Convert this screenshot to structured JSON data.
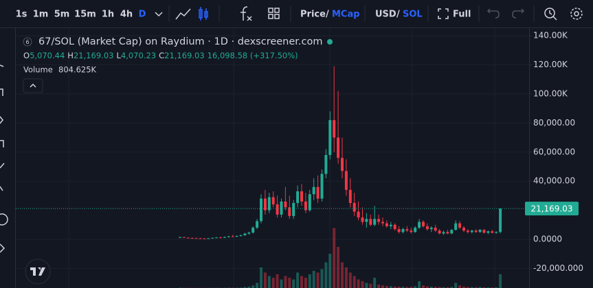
{
  "toolbar": {
    "intervals": [
      "1s",
      "1m",
      "5m",
      "15m",
      "1h",
      "4h",
      "D"
    ],
    "price": "Price",
    "slash": "/",
    "mcap": "MCap",
    "usd": "USD",
    "sol": "SOL",
    "full": "Full"
  },
  "legend": {
    "badge": "6",
    "title": "67/SOL (Market Cap) on Raydium · 1D · dexscreener.com",
    "labels": [
      "O",
      "H",
      "L",
      "C"
    ],
    "ohlc": [
      "5,070.44",
      "21,169.03",
      "4,070.23",
      "21,169.03"
    ],
    "change": "16,098.58 (+317.50%)",
    "volume_label": "Volume",
    "volume_value": "804.625K"
  },
  "chart_data": {
    "type": "candlestick",
    "up_color": "#22ab94",
    "down_color": "#f23645",
    "open": [
      1200,
      1500,
      1100,
      900,
      800,
      700,
      600,
      500,
      700,
      1000,
      1300,
      1100,
      1600,
      2000,
      1800,
      2300,
      2800,
      3900,
      4600,
      8000,
      12500,
      28000,
      20000,
      29000,
      24000,
      17000,
      26000,
      22000,
      16000,
      25000,
      33000,
      26000,
      20000,
      31000,
      36000,
      28000,
      45000,
      58000,
      82000,
      70000,
      56000,
      47000,
      34000,
      25000,
      19000,
      15000,
      12000,
      14000,
      10000,
      14000,
      12000,
      11000,
      9000,
      10000,
      7000,
      5000,
      7000,
      6000,
      5000,
      8000,
      12000,
      9000,
      7000,
      8000,
      6000,
      4000,
      5000,
      4000,
      6500,
      11000,
      8000,
      6000,
      5000,
      6000,
      5000,
      6500,
      4500,
      5500,
      4500,
      5070.44
    ],
    "high": [
      1800,
      1700,
      1400,
      1200,
      1100,
      1000,
      900,
      800,
      1200,
      1500,
      1700,
      1900,
      2400,
      3000,
      2600,
      3200,
      4500,
      5200,
      9000,
      14000,
      31000,
      34000,
      32000,
      33000,
      30000,
      28000,
      36000,
      30000,
      27000,
      37000,
      38000,
      32000,
      34000,
      42000,
      44000,
      48000,
      62000,
      88000,
      119000,
      102000,
      70000,
      55000,
      42000,
      32000,
      26000,
      22000,
      18000,
      17000,
      23000,
      17000,
      15000,
      13000,
      12000,
      11000,
      9000,
      8000,
      9000,
      8000,
      9000,
      14000,
      13000,
      11000,
      9000,
      10000,
      7000,
      6000,
      6500,
      7000,
      13000,
      12500,
      9000,
      7000,
      6500,
      7000,
      7000,
      7000,
      6000,
      6500,
      5500,
      21169.03
    ],
    "low": [
      900,
      1000,
      800,
      600,
      500,
      400,
      300,
      300,
      500,
      800,
      900,
      900,
      1200,
      1600,
      1500,
      1900,
      2300,
      3200,
      4000,
      7000,
      11000,
      17000,
      18000,
      22000,
      15000,
      15000,
      20000,
      14000,
      14000,
      22000,
      23000,
      18000,
      19000,
      27000,
      25000,
      26000,
      42000,
      55000,
      60000,
      52000,
      42000,
      30000,
      22000,
      16000,
      13000,
      10000,
      8000,
      9000,
      9000,
      10000,
      9000,
      8000,
      7000,
      6000,
      4000,
      4000,
      5000,
      4000,
      4500,
      7000,
      8000,
      6000,
      5000,
      5000,
      3500,
      3000,
      3500,
      3500,
      6000,
      7000,
      5000,
      4000,
      4000,
      4500,
      4500,
      4000,
      3500,
      4000,
      3800,
      4070.23
    ],
    "close": [
      1500,
      1100,
      900,
      800,
      700,
      600,
      500,
      700,
      1000,
      1300,
      1100,
      1600,
      2000,
      1800,
      2300,
      2800,
      3900,
      4600,
      8000,
      12500,
      28000,
      20000,
      29000,
      24000,
      17000,
      26000,
      22000,
      16000,
      25000,
      33000,
      26000,
      20000,
      31000,
      36000,
      28000,
      45000,
      58000,
      82000,
      70000,
      56000,
      47000,
      34000,
      25000,
      19000,
      15000,
      12000,
      14000,
      10000,
      14000,
      12000,
      11000,
      9000,
      10000,
      7000,
      5000,
      7000,
      6000,
      5000,
      8000,
      12000,
      9000,
      7000,
      8000,
      6000,
      4000,
      5000,
      4000,
      6500,
      11000,
      8000,
      6000,
      5000,
      6000,
      5000,
      6500,
      4500,
      5500,
      4500,
      5070.44,
      21169.03
    ],
    "volume": [
      20000,
      15000,
      10000,
      8000,
      8000,
      6000,
      5000,
      9000,
      12000,
      15000,
      10000,
      14000,
      20000,
      18000,
      22000,
      25000,
      60000,
      80000,
      150000,
      300000,
      1200000,
      900000,
      700000,
      600000,
      800000,
      500000,
      700000,
      600000,
      500000,
      900000,
      700000,
      600000,
      800000,
      1000000,
      900000,
      1100000,
      1500000,
      2000000,
      3500000,
      2400000,
      1500000,
      1200000,
      900000,
      700000,
      500000,
      400000,
      300000,
      250000,
      600000,
      200000,
      150000,
      120000,
      100000,
      90000,
      80000,
      70000,
      60000,
      70000,
      100000,
      400000,
      150000,
      90000,
      80000,
      70000,
      60000,
      50000,
      50000,
      60000,
      300000,
      150000,
      80000,
      60000,
      50000,
      50000,
      60000,
      40000,
      40000,
      35000,
      40000,
      804625
    ],
    "volume_lim": [
      0,
      4000000
    ],
    "ylim": [
      -33500,
      145750
    ],
    "yticks": [
      {
        "value": 140000,
        "label": "140.00K"
      },
      {
        "value": 120000,
        "label": "120.00K"
      },
      {
        "value": 100000,
        "label": "100.00K"
      },
      {
        "value": 80000,
        "label": "80,000.00"
      },
      {
        "value": 60000,
        "label": "60,000.00"
      },
      {
        "value": 40000,
        "label": "40,000.00"
      },
      {
        "value": 0,
        "label": "0.0000"
      },
      {
        "value": -20000,
        "label": "-20,000.000"
      }
    ],
    "grid": true,
    "last_price_label": "21,169.03"
  }
}
